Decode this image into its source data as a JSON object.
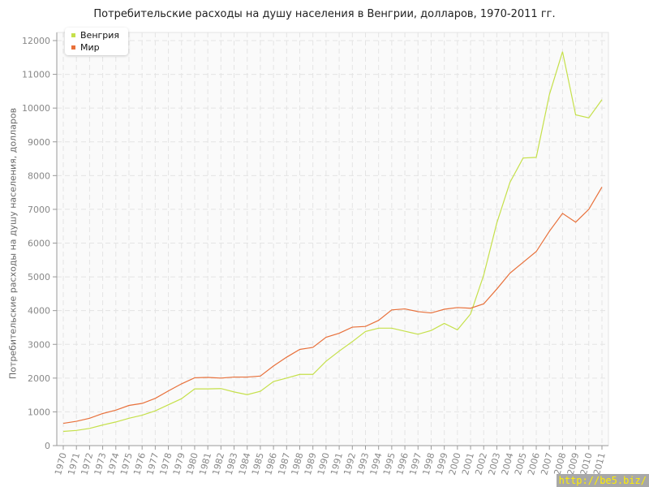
{
  "chart_data": {
    "type": "line",
    "title": "Потребительские расходы на душу населения в Венгрии, долларов, 1970-2011 гг.",
    "xlabel": "",
    "ylabel": "Потребительские расходы на душу населения, долларов",
    "ylim": [
      0,
      12000
    ],
    "yticks": [
      0,
      1000,
      2000,
      3000,
      4000,
      5000,
      6000,
      7000,
      8000,
      9000,
      10000,
      11000,
      12000
    ],
    "grid": true,
    "legend_position": "top-left",
    "x": [
      1970,
      1971,
      1972,
      1973,
      1974,
      1975,
      1976,
      1977,
      1978,
      1979,
      1980,
      1981,
      1982,
      1983,
      1984,
      1985,
      1986,
      1987,
      1988,
      1989,
      1990,
      1991,
      1992,
      1993,
      1994,
      1995,
      1996,
      1997,
      1998,
      1999,
      2000,
      2001,
      2002,
      2003,
      2004,
      2005,
      2006,
      2007,
      2008,
      2009,
      2010,
      2011
    ],
    "series": [
      {
        "name": "Венгрия",
        "color": "#c5e04a",
        "values": [
          420,
          450,
          510,
          610,
          700,
          810,
          900,
          1030,
          1210,
          1390,
          1680,
          1680,
          1690,
          1590,
          1510,
          1610,
          1900,
          2000,
          2110,
          2110,
          2500,
          2800,
          3080,
          3380,
          3480,
          3480,
          3390,
          3300,
          3410,
          3620,
          3430,
          3900,
          5050,
          6600,
          7800,
          8520,
          8540,
          10400,
          11670,
          9800,
          9710,
          10250
        ]
      },
      {
        "name": "Мир",
        "color": "#e8703a",
        "values": [
          660,
          720,
          810,
          950,
          1050,
          1190,
          1250,
          1400,
          1620,
          1830,
          2010,
          2020,
          2000,
          2030,
          2030,
          2060,
          2360,
          2620,
          2850,
          2910,
          3210,
          3330,
          3510,
          3530,
          3710,
          4020,
          4050,
          3970,
          3930,
          4040,
          4090,
          4070,
          4200,
          4640,
          5110,
          5430,
          5750,
          6350,
          6880,
          6620,
          7000,
          7660
        ]
      }
    ]
  },
  "watermark": "http://be5.biz/"
}
